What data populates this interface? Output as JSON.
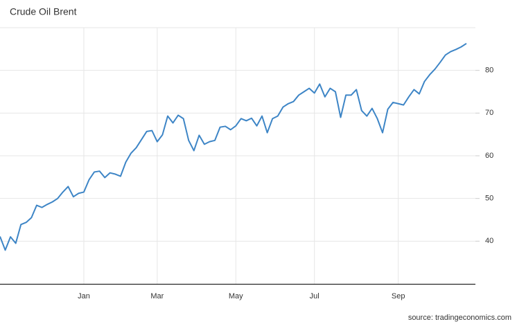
{
  "chart_data": {
    "type": "line",
    "title": "Crude Oil Brent",
    "source": "source: tradingeconomics.com",
    "categories": [
      null,
      null,
      null,
      null,
      null,
      null,
      null,
      null,
      null,
      null,
      null,
      null,
      null,
      null,
      null,
      null,
      "Jan",
      null,
      null,
      null,
      null,
      null,
      null,
      null,
      null,
      null,
      null,
      null,
      null,
      null,
      "Mar",
      null,
      null,
      null,
      null,
      null,
      null,
      null,
      null,
      null,
      null,
      null,
      null,
      null,
      null,
      "May",
      null,
      null,
      null,
      null,
      null,
      null,
      null,
      null,
      null,
      null,
      null,
      null,
      null,
      null,
      "Jul",
      null,
      null,
      null,
      null,
      null,
      null,
      null,
      null,
      null,
      null,
      null,
      null,
      null,
      null,
      null,
      "Sep",
      null,
      null,
      null,
      null,
      null,
      null,
      null,
      null,
      null,
      null,
      null,
      null,
      null
    ],
    "series": [
      {
        "name": "Crude Oil Brent",
        "color": "#3d85c6",
        "values": [
          41.1,
          37.9,
          41,
          39.5,
          43.9,
          44.4,
          45.5,
          48.4,
          47.9,
          48.6,
          49.2,
          50,
          51.5,
          52.8,
          50.4,
          51.2,
          51.5,
          54.4,
          56.2,
          56.4,
          54.9,
          56,
          55.7,
          55.2,
          58.5,
          60.6,
          61.9,
          63.8,
          65.7,
          65.9,
          63.3,
          64.9,
          69.3,
          67.7,
          69.5,
          68.7,
          63.6,
          61.2,
          64.8,
          62.7,
          63.3,
          63.6,
          66.7,
          66.9,
          66.1,
          67,
          68.7,
          68.2,
          68.8,
          67,
          69.3,
          65.4,
          68.7,
          69.3,
          71.4,
          72.2,
          72.7,
          74.2,
          75,
          75.8,
          74.7,
          76.8,
          73.8,
          75.8,
          75,
          69,
          74.2,
          74.2,
          75.5,
          70.6,
          69.3,
          71.1,
          68.7,
          65.4,
          70.9,
          72.5,
          72.2,
          71.9,
          73.8,
          75.5,
          74.5,
          77.4,
          79,
          80.3,
          81.9,
          83.6,
          84.4,
          84.9,
          85.5,
          86.3
        ]
      }
    ],
    "ylim": [
      30,
      90
    ],
    "yticks": [
      40,
      50,
      60,
      70,
      80
    ],
    "grid": true
  }
}
